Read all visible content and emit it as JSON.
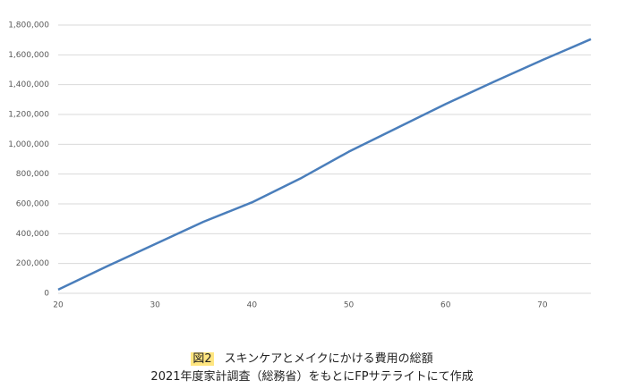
{
  "chart_data": {
    "type": "line",
    "figure_label": "図2",
    "title": "スキンケアとメイクにかける費用の総額",
    "source": "2021年度家計調査（総務省）をもとにFPサテライトにて作成",
    "x": [
      20,
      25,
      30,
      35,
      40,
      45,
      50,
      55,
      60,
      65,
      70,
      75
    ],
    "series": [
      {
        "name": "総額",
        "color": "#4a7ebb",
        "values": [
          25000,
          180000,
          330000,
          480000,
          610000,
          770000,
          950000,
          1110000,
          1270000,
          1420000,
          1565000,
          1705000
        ]
      }
    ],
    "xlim": [
      20,
      75
    ],
    "xticks": [
      20,
      30,
      40,
      50,
      60,
      70
    ],
    "ylim": [
      0,
      1800000
    ],
    "yticks": [
      0,
      {
        "value": 200000,
        "label": "200,000"
      },
      {
        "value": 400000,
        "label": "400,000"
      },
      {
        "value": 600000,
        "label": "600,000"
      },
      {
        "value": 800000,
        "label": "800,000"
      },
      {
        "value": 1000000,
        "label": "1,000,000"
      },
      {
        "value": 1200000,
        "label": "1,200,000"
      },
      {
        "value": 1400000,
        "label": "1,400,000"
      },
      {
        "value": 1600000,
        "label": "1,600,000"
      },
      {
        "value": 1800000,
        "label": "1,800,000"
      }
    ],
    "grid": true
  }
}
